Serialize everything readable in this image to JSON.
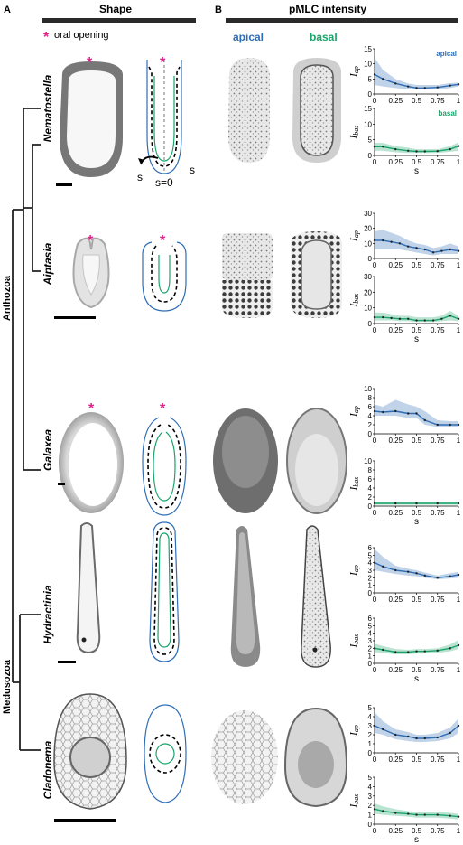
{
  "panels": {
    "a": "A",
    "b": "B"
  },
  "headers": {
    "shape": "Shape",
    "pmlc": "pMLC intensity",
    "apical": "apical",
    "basal": "basal"
  },
  "legend": {
    "star": "*",
    "text": "oral opening"
  },
  "clades": {
    "anthozoa": "Anthozoa",
    "medusozoa": "Medusozoa"
  },
  "species": [
    "Nematostella",
    "Aiptasia",
    "Galaxea",
    "Hydractinia",
    "Cladonema"
  ],
  "shape_labels": {
    "s": "s",
    "s0": "s=0"
  },
  "colors": {
    "apical": "#2f6db5",
    "basal": "#1aa36b",
    "oral": "#e0218a"
  },
  "chart_data": [
    {
      "type": "line",
      "species": "Nematostella",
      "ylabel": "I_ap",
      "tag": "apical",
      "ylim": [
        0,
        15
      ],
      "yticks": [
        "0",
        "5",
        "10",
        "15"
      ],
      "xticks": [
        "0",
        "0.25",
        "0.5",
        "0.75",
        "1"
      ],
      "xlabel": "",
      "series": [
        {
          "name": "apical",
          "x": [
            0,
            0.1,
            0.25,
            0.4,
            0.5,
            0.6,
            0.75,
            0.9,
            1
          ],
          "y": [
            6.5,
            5,
            3.5,
            2.5,
            2,
            2,
            2.2,
            2.8,
            3.2
          ],
          "lo": [
            3,
            2.5,
            2,
            1.5,
            1.5,
            1.5,
            1.5,
            2,
            2.5
          ],
          "hi": [
            12,
            8,
            5,
            3.5,
            3,
            3,
            3,
            3.6,
            3.8
          ]
        }
      ]
    },
    {
      "type": "line",
      "species": "Nematostella",
      "ylabel": "I_bas",
      "tag": "basal",
      "ylim": [
        0,
        15
      ],
      "yticks": [
        "0",
        "5",
        "10",
        "15"
      ],
      "xticks": [
        "0",
        "0.25",
        "0.5",
        "0.75",
        "1"
      ],
      "xlabel": "s",
      "series": [
        {
          "name": "basal",
          "x": [
            0,
            0.1,
            0.25,
            0.4,
            0.5,
            0.6,
            0.75,
            0.9,
            1
          ],
          "y": [
            2.8,
            2.8,
            2,
            1.5,
            1.3,
            1.3,
            1.4,
            2,
            3
          ],
          "lo": [
            1.5,
            1.5,
            1,
            0.8,
            0.8,
            0.8,
            0.8,
            1.2,
            1.5
          ],
          "hi": [
            4,
            4,
            3,
            2.5,
            2,
            2,
            2,
            3,
            4.2
          ]
        }
      ]
    },
    {
      "type": "line",
      "species": "Aiptasia",
      "ylabel": "I_ap",
      "tag": "",
      "ylim": [
        0,
        30
      ],
      "yticks": [
        "0",
        "10",
        "20",
        "30"
      ],
      "xticks": [
        "0",
        "0.25",
        "0.5",
        "0.75",
        "1"
      ],
      "xlabel": "",
      "series": [
        {
          "name": "apical",
          "x": [
            0,
            0.1,
            0.2,
            0.3,
            0.4,
            0.5,
            0.6,
            0.7,
            0.8,
            0.9,
            1
          ],
          "y": [
            12,
            12,
            11,
            10,
            8,
            7,
            6,
            4,
            5,
            6,
            5
          ],
          "lo": [
            6,
            6,
            6,
            6,
            5,
            4,
            3,
            2,
            3,
            3,
            3
          ],
          "hi": [
            18,
            19,
            17,
            15,
            12,
            10,
            9,
            7,
            8,
            10,
            8
          ]
        }
      ]
    },
    {
      "type": "line",
      "species": "Aiptasia",
      "ylabel": "I_bas",
      "tag": "",
      "ylim": [
        0,
        30
      ],
      "yticks": [
        "0",
        "10",
        "20",
        "30"
      ],
      "xticks": [
        "0",
        "0.25",
        "0.5",
        "0.75",
        "1"
      ],
      "xlabel": "s",
      "series": [
        {
          "name": "basal",
          "x": [
            0,
            0.1,
            0.2,
            0.3,
            0.4,
            0.5,
            0.6,
            0.7,
            0.8,
            0.9,
            1
          ],
          "y": [
            4,
            4,
            3.5,
            3,
            3,
            2,
            2,
            2,
            3,
            5,
            3
          ],
          "lo": [
            2,
            2,
            2,
            1.5,
            1.5,
            1,
            1,
            1,
            1.5,
            2,
            1.5
          ],
          "hi": [
            7,
            7,
            6,
            5,
            5,
            4,
            4,
            4,
            5,
            8,
            5
          ]
        }
      ]
    },
    {
      "type": "line",
      "species": "Galaxea",
      "ylabel": "I_ap",
      "tag": "",
      "ylim": [
        0,
        10
      ],
      "yticks": [
        "0",
        "2",
        "4",
        "6",
        "8",
        "10"
      ],
      "xticks": [
        "0",
        "0.25",
        "0.5",
        "0.75",
        "1"
      ],
      "xlabel": "",
      "series": [
        {
          "name": "apical",
          "x": [
            0,
            0.1,
            0.25,
            0.4,
            0.5,
            0.6,
            0.75,
            0.9,
            1
          ],
          "y": [
            5,
            4.8,
            5,
            4.5,
            4.5,
            3,
            2,
            2,
            2
          ],
          "lo": [
            4,
            4,
            4,
            3.5,
            3.5,
            2,
            1.5,
            1.5,
            1.5
          ],
          "hi": [
            6.5,
            6,
            7.5,
            6.5,
            6,
            5,
            3,
            2.8,
            2.8
          ]
        }
      ]
    },
    {
      "type": "line",
      "species": "Galaxea",
      "ylabel": "I_bas",
      "tag": "",
      "ylim": [
        0,
        10
      ],
      "yticks": [
        "0",
        "2",
        "4",
        "6",
        "8",
        "10"
      ],
      "xticks": [
        "0",
        "0.25",
        "0.5",
        "0.75",
        "1"
      ],
      "xlabel": "s",
      "series": [
        {
          "name": "basal",
          "x": [
            0,
            0.25,
            0.5,
            0.75,
            1
          ],
          "y": [
            0.6,
            0.6,
            0.6,
            0.6,
            0.6
          ],
          "lo": [
            0.3,
            0.3,
            0.3,
            0.3,
            0.3
          ],
          "hi": [
            0.9,
            0.9,
            0.9,
            0.9,
            0.9
          ]
        }
      ]
    },
    {
      "type": "line",
      "species": "Hydractinia",
      "ylabel": "I_ap",
      "tag": "",
      "ylim": [
        0,
        6
      ],
      "yticks": [
        "0",
        "1",
        "2",
        "3",
        "4",
        "5",
        "6"
      ],
      "xticks": [
        "0",
        "0.25",
        "0.5",
        "0.75",
        "1"
      ],
      "xlabel": "",
      "series": [
        {
          "name": "apical",
          "x": [
            0,
            0.1,
            0.25,
            0.4,
            0.5,
            0.6,
            0.75,
            0.9,
            1
          ],
          "y": [
            4,
            3.5,
            3,
            2.8,
            2.6,
            2.3,
            2,
            2.2,
            2.4
          ],
          "lo": [
            3,
            2.8,
            2.5,
            2.3,
            2.2,
            2,
            1.8,
            1.9,
            2
          ],
          "hi": [
            5.8,
            4.8,
            3.6,
            3.2,
            3,
            2.7,
            2.3,
            2.6,
            2.8
          ]
        }
      ]
    },
    {
      "type": "line",
      "species": "Hydractinia",
      "ylabel": "I_bas",
      "tag": "",
      "ylim": [
        0,
        6
      ],
      "yticks": [
        "0",
        "1",
        "2",
        "3",
        "4",
        "5",
        "6"
      ],
      "xticks": [
        "0",
        "0.25",
        "0.5",
        "0.75",
        "1"
      ],
      "xlabel": "s",
      "series": [
        {
          "name": "basal",
          "x": [
            0,
            0.1,
            0.25,
            0.4,
            0.5,
            0.6,
            0.75,
            0.9,
            1
          ],
          "y": [
            2,
            1.8,
            1.5,
            1.5,
            1.6,
            1.6,
            1.7,
            2,
            2.4
          ],
          "lo": [
            1.5,
            1.4,
            1.2,
            1.2,
            1.3,
            1.3,
            1.4,
            1.6,
            1.9
          ],
          "hi": [
            2.6,
            2.3,
            1.9,
            1.8,
            1.9,
            1.9,
            2,
            2.5,
            3.1
          ]
        }
      ]
    },
    {
      "type": "line",
      "species": "Cladonema",
      "ylabel": "I_ap",
      "tag": "",
      "ylim": [
        0,
        5
      ],
      "yticks": [
        "0",
        "1",
        "2",
        "3",
        "4",
        "5"
      ],
      "xticks": [
        "0",
        "0.25",
        "0.5",
        "0.75",
        "1"
      ],
      "xlabel": "",
      "series": [
        {
          "name": "apical",
          "x": [
            0,
            0.1,
            0.25,
            0.4,
            0.5,
            0.6,
            0.75,
            0.9,
            1
          ],
          "y": [
            3,
            2.6,
            2,
            1.8,
            1.6,
            1.6,
            1.7,
            2.2,
            3
          ],
          "lo": [
            2.2,
            2,
            1.5,
            1.3,
            1.2,
            1.2,
            1.3,
            1.6,
            2.2
          ],
          "hi": [
            4.5,
            3.5,
            2.6,
            2.3,
            2,
            2,
            2.2,
            2.8,
            3.8
          ]
        }
      ]
    },
    {
      "type": "line",
      "species": "Cladonema",
      "ylabel": "I_bas",
      "tag": "",
      "ylim": [
        0,
        5
      ],
      "yticks": [
        "0",
        "1",
        "2",
        "3",
        "4",
        "5"
      ],
      "xticks": [
        "0",
        "0.25",
        "0.5",
        "0.75",
        "1"
      ],
      "xlabel": "s",
      "series": [
        {
          "name": "basal",
          "x": [
            0,
            0.1,
            0.25,
            0.4,
            0.5,
            0.6,
            0.75,
            0.9,
            1
          ],
          "y": [
            1.6,
            1.4,
            1.2,
            1.1,
            1,
            1,
            1,
            0.9,
            0.8
          ],
          "lo": [
            1.1,
            1,
            0.9,
            0.8,
            0.7,
            0.7,
            0.7,
            0.6,
            0.5
          ],
          "hi": [
            2.2,
            1.9,
            1.6,
            1.4,
            1.3,
            1.3,
            1.3,
            1.2,
            1.1
          ]
        }
      ]
    }
  ]
}
